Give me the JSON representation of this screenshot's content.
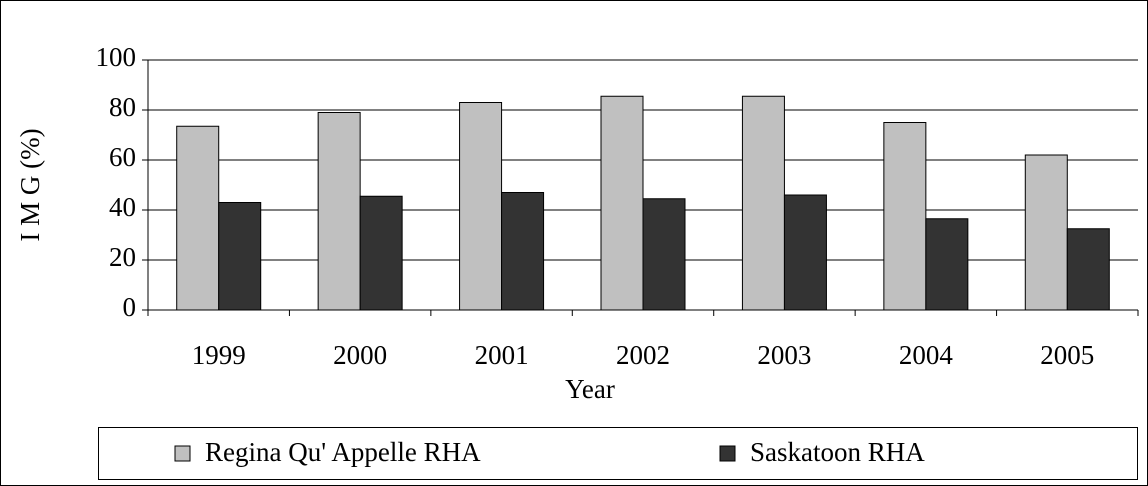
{
  "chart_data": {
    "type": "bar",
    "x_label": "Year",
    "y_label": "I M G (%)",
    "categories": [
      "1999",
      "2000",
      "2001",
      "2002",
      "2003",
      "2004",
      "2005"
    ],
    "series": [
      {
        "name": "Regina Qu' Appelle RHA",
        "color": "#c0c0c0",
        "values": [
          73.5,
          79,
          83,
          85.5,
          85.5,
          75,
          62
        ]
      },
      {
        "name": "Saskatoon RHA",
        "color": "#333333",
        "values": [
          43,
          45.5,
          47,
          44.5,
          46,
          36.5,
          32.5
        ]
      }
    ],
    "ylim": [
      0,
      100
    ],
    "yticks": [
      0,
      20,
      40,
      60,
      80,
      100
    ],
    "grid": true,
    "legend": "bottom"
  }
}
